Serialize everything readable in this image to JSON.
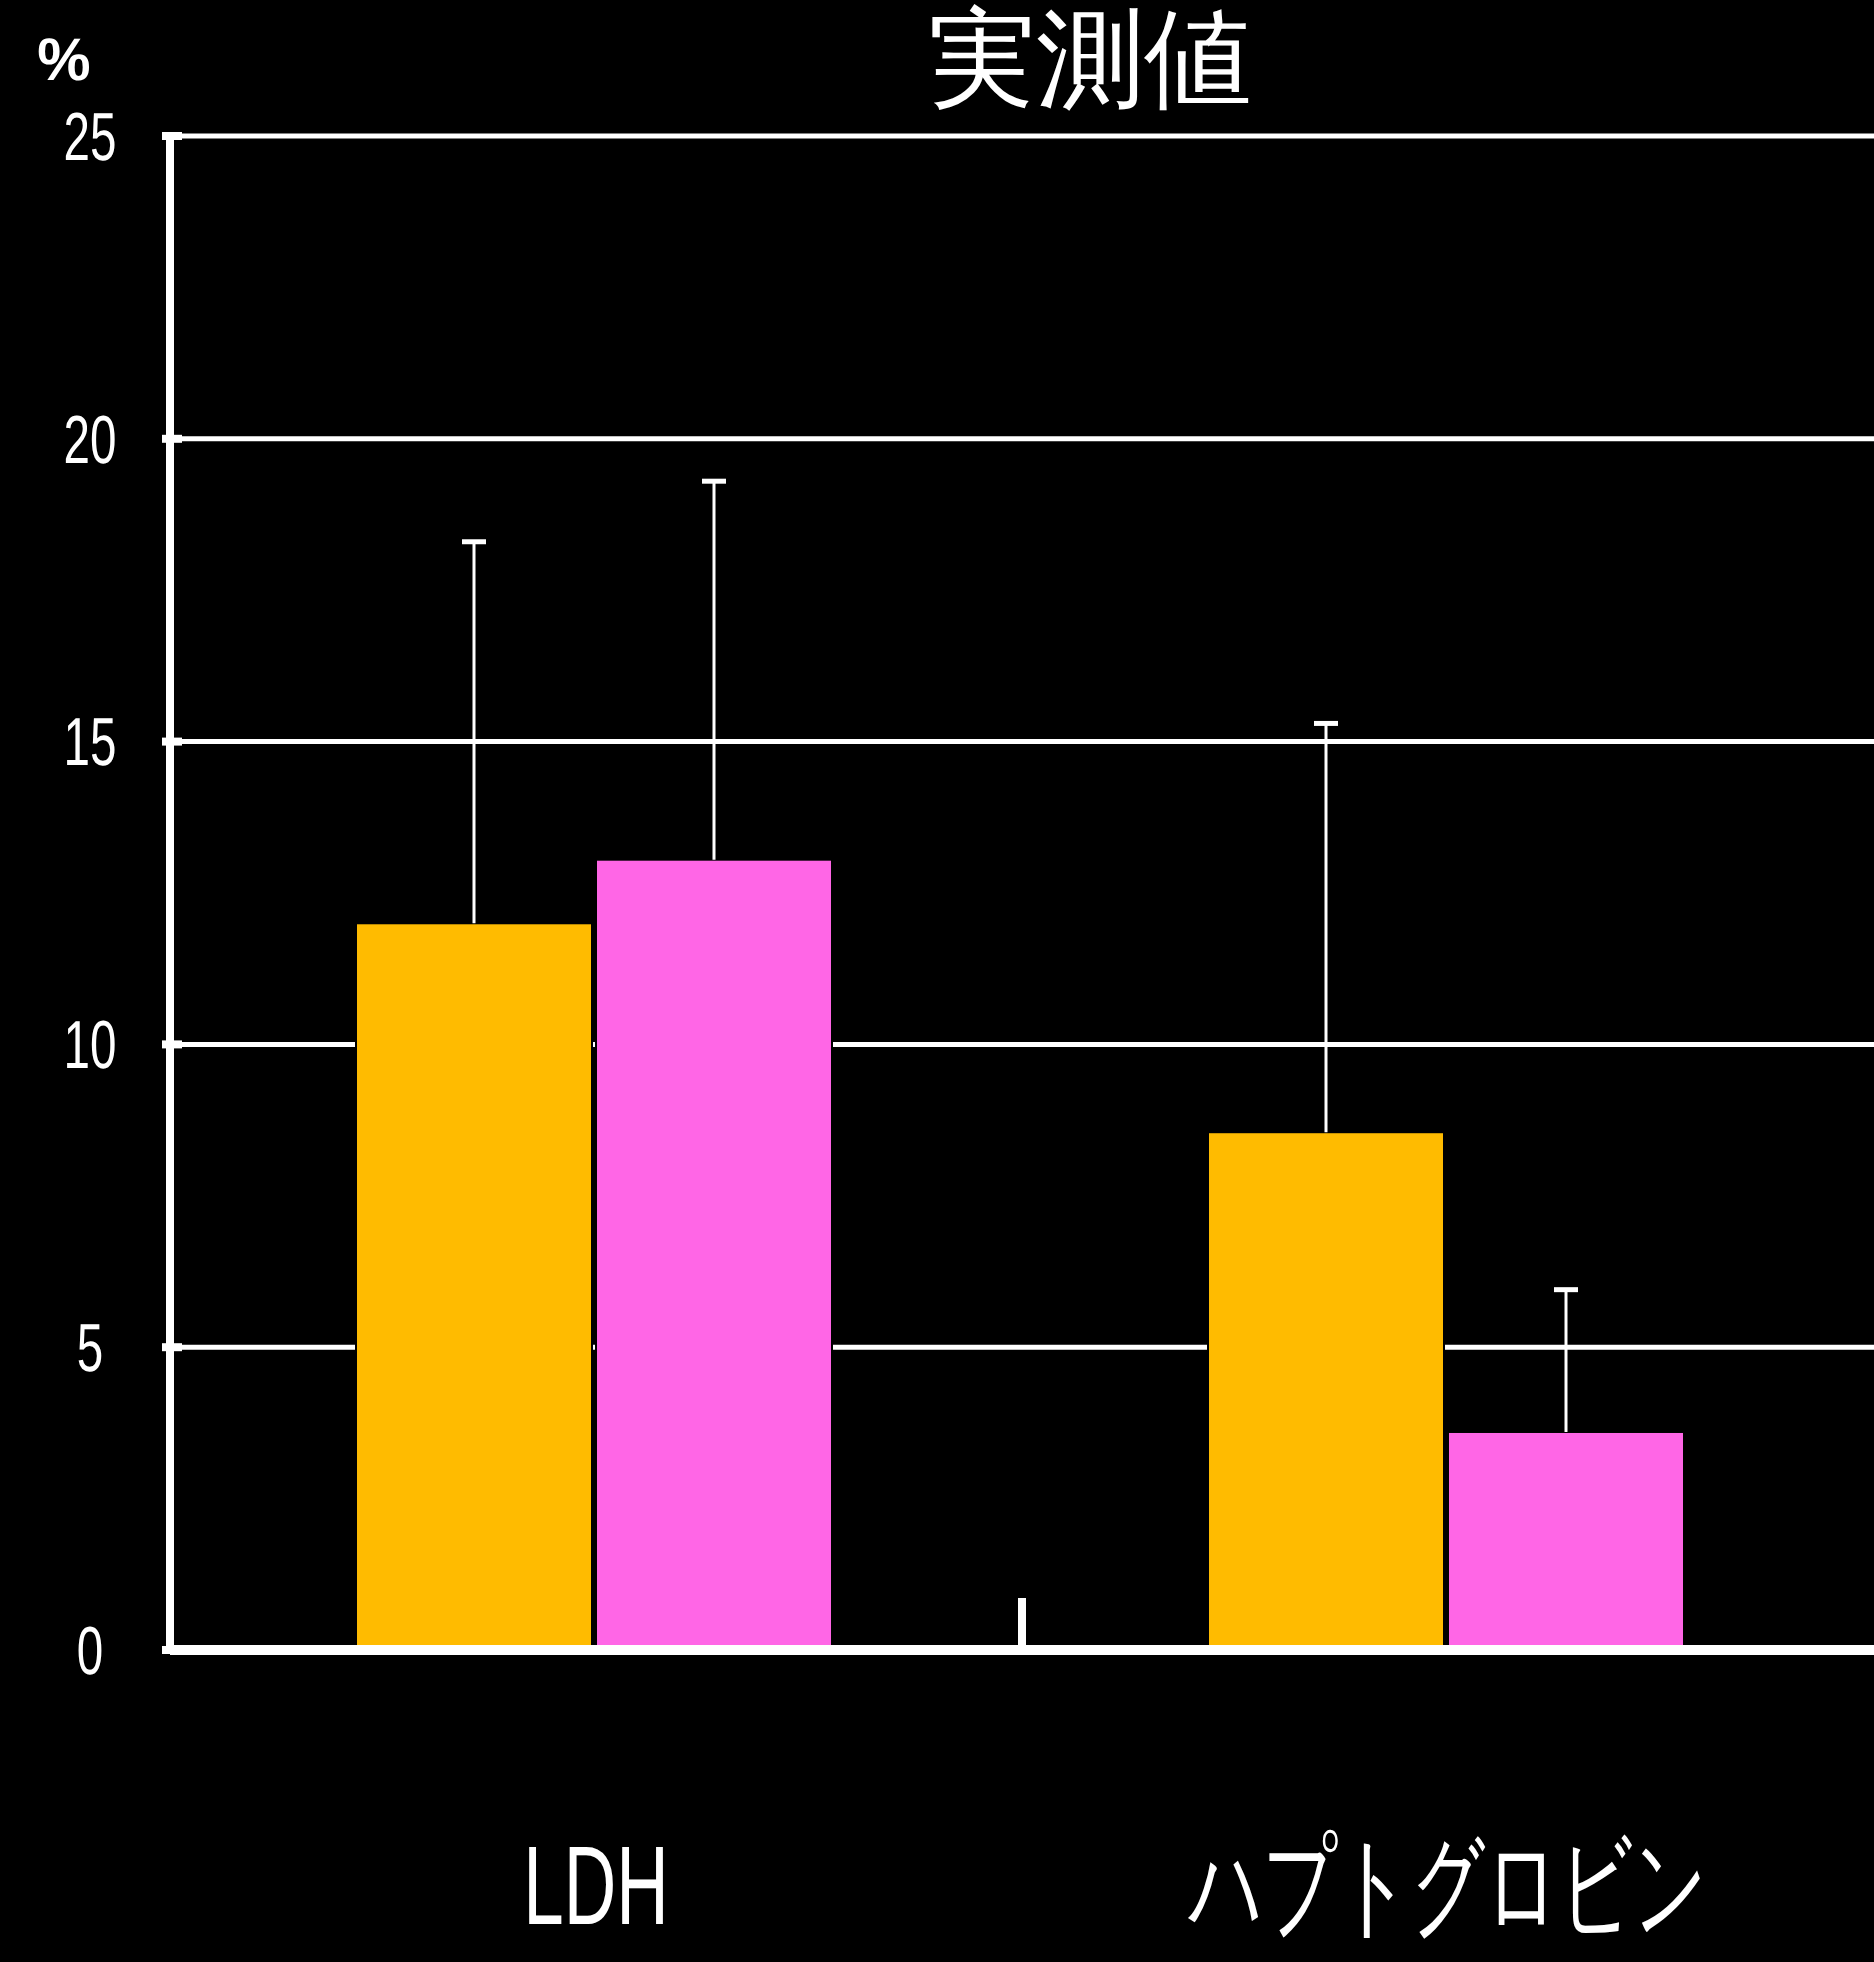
{
  "chart_data": {
    "type": "bar",
    "title": "実測値",
    "ylabel": "%",
    "categories": [
      "LDH",
      "ハプトグロビン"
    ],
    "series": [
      {
        "color": "#ffbb00",
        "values": [
          12,
          8.55
        ],
        "errors": [
          [
            12,
            18.3
          ],
          [
            8.55,
            15.3
          ]
        ]
      },
      {
        "color": "#ff66e6",
        "values": [
          13.05,
          3.6
        ],
        "errors": [
          [
            13.05,
            19.3
          ],
          [
            3.6,
            5.95
          ]
        ]
      }
    ],
    "ylim": [
      0,
      25
    ],
    "yticks": [
      0,
      5,
      10,
      15,
      20,
      25
    ],
    "grid": "y"
  }
}
